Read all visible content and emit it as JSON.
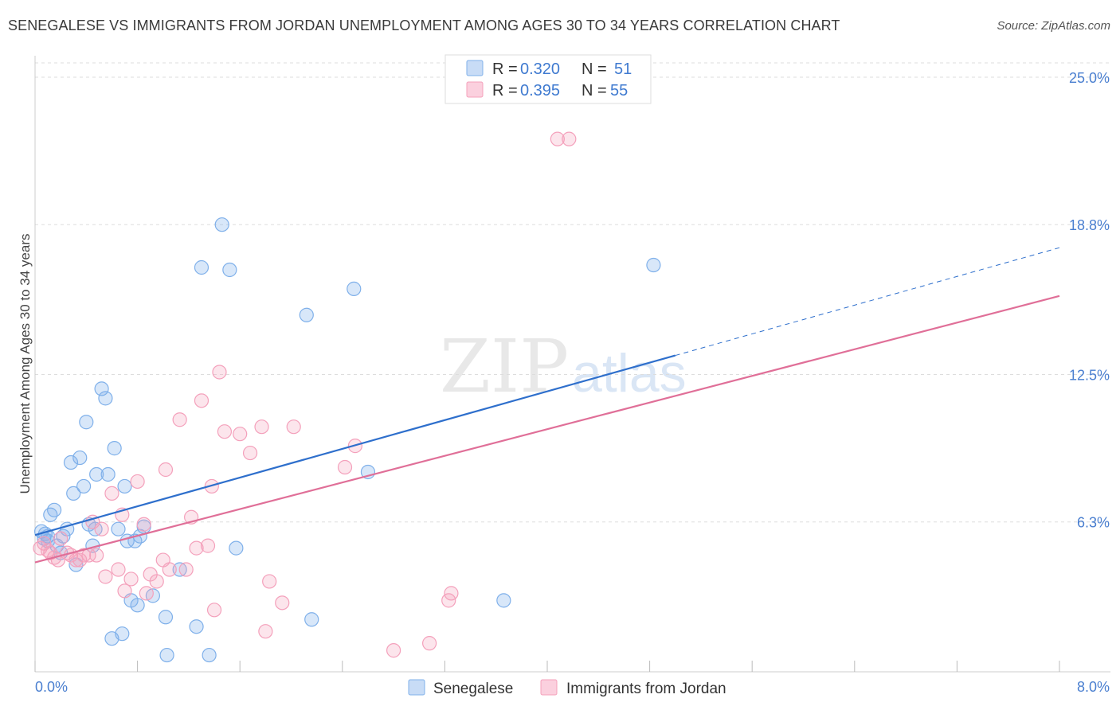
{
  "header": {
    "title": "SENEGALESE VS IMMIGRANTS FROM JORDAN UNEMPLOYMENT AMONG AGES 30 TO 34 YEARS CORRELATION CHART",
    "source": "Source: ZipAtlas.com"
  },
  "watermark": {
    "zip": "ZIP",
    "atlas": "atlas"
  },
  "legend": {
    "r_label": "R =",
    "n_label": "N =",
    "entries": [
      {
        "name": "Senegalese",
        "r": "0.320",
        "n": "51",
        "color": "#7fb0ea"
      },
      {
        "name": "Immigrants from Jordan",
        "r": "0.395",
        "n": "55",
        "color": "#f4a0bb"
      }
    ]
  },
  "chart_data": {
    "type": "scatter",
    "title": "SENEGALESE VS IMMIGRANTS FROM JORDAN UNEMPLOYMENT AMONG AGES 30 TO 34 YEARS CORRELATION CHART",
    "xlabel": "",
    "ylabel": "Unemployment Among Ages 30 to 34 years",
    "xlim": [
      0,
      8
    ],
    "ylim": [
      0,
      25.5
    ],
    "x_tick_labels": [
      "0.0%",
      "8.0%"
    ],
    "y_ticks": [
      6.3,
      12.5,
      18.8,
      25.0
    ],
    "y_tick_labels": [
      "6.3%",
      "12.5%",
      "18.8%",
      "25.0%"
    ],
    "grid": true,
    "series": [
      {
        "name": "Senegalese",
        "color": "#7fb0ea",
        "line_color": "#2e6fcc",
        "trend": {
          "x0": 0,
          "y0": 5.75,
          "x1": 5.0,
          "y1": 13.3,
          "dash_to_x": 8.0
        },
        "points": [
          [
            0.05,
            5.9
          ],
          [
            0.08,
            5.8
          ],
          [
            0.1,
            5.7
          ],
          [
            0.1,
            5.5
          ],
          [
            0.12,
            6.6
          ],
          [
            0.15,
            6.8
          ],
          [
            0.17,
            5.3
          ],
          [
            0.2,
            5.0
          ],
          [
            0.22,
            5.7
          ],
          [
            0.25,
            6.0
          ],
          [
            0.28,
            8.8
          ],
          [
            0.3,
            7.5
          ],
          [
            0.32,
            4.5
          ],
          [
            0.35,
            9.0
          ],
          [
            0.38,
            7.8
          ],
          [
            0.4,
            10.5
          ],
          [
            0.42,
            6.2
          ],
          [
            0.45,
            5.3
          ],
          [
            0.47,
            6.0
          ],
          [
            0.48,
            8.3
          ],
          [
            0.52,
            11.9
          ],
          [
            0.55,
            11.5
          ],
          [
            0.57,
            8.3
          ],
          [
            0.6,
            1.4
          ],
          [
            0.62,
            9.4
          ],
          [
            0.65,
            6.0
          ],
          [
            0.68,
            1.6
          ],
          [
            0.7,
            7.8
          ],
          [
            0.72,
            5.5
          ],
          [
            0.75,
            3.0
          ],
          [
            0.78,
            5.5
          ],
          [
            0.8,
            2.8
          ],
          [
            0.82,
            5.7
          ],
          [
            0.85,
            6.1
          ],
          [
            0.92,
            3.2
          ],
          [
            1.02,
            2.3
          ],
          [
            1.03,
            0.7
          ],
          [
            1.13,
            4.3
          ],
          [
            1.26,
            1.9
          ],
          [
            1.3,
            17.0
          ],
          [
            1.36,
            0.7
          ],
          [
            1.46,
            18.8
          ],
          [
            1.52,
            16.9
          ],
          [
            1.57,
            5.2
          ],
          [
            2.12,
            15.0
          ],
          [
            2.16,
            2.2
          ],
          [
            2.49,
            16.1
          ],
          [
            2.6,
            8.4
          ],
          [
            3.66,
            3.0
          ],
          [
            4.83,
            17.1
          ],
          [
            0.07,
            5.6
          ]
        ]
      },
      {
        "name": "Immigrants from Jordan",
        "color": "#f4a0bb",
        "line_color": "#e06f98",
        "trend": {
          "x0": 0,
          "y0": 4.6,
          "x1": 8.0,
          "y1": 15.8
        },
        "points": [
          [
            0.04,
            5.2
          ],
          [
            0.07,
            5.4
          ],
          [
            0.1,
            5.1
          ],
          [
            0.12,
            5.0
          ],
          [
            0.15,
            4.8
          ],
          [
            0.18,
            4.7
          ],
          [
            0.2,
            5.6
          ],
          [
            0.25,
            5.0
          ],
          [
            0.28,
            4.9
          ],
          [
            0.32,
            4.7
          ],
          [
            0.35,
            4.7
          ],
          [
            0.38,
            4.9
          ],
          [
            0.42,
            4.9
          ],
          [
            0.45,
            6.3
          ],
          [
            0.48,
            4.9
          ],
          [
            0.52,
            6.0
          ],
          [
            0.55,
            4.0
          ],
          [
            0.6,
            7.5
          ],
          [
            0.65,
            4.3
          ],
          [
            0.68,
            6.6
          ],
          [
            0.7,
            3.4
          ],
          [
            0.75,
            3.9
          ],
          [
            0.8,
            8.0
          ],
          [
            0.85,
            6.2
          ],
          [
            0.87,
            3.3
          ],
          [
            0.9,
            4.1
          ],
          [
            0.95,
            3.8
          ],
          [
            1.0,
            4.7
          ],
          [
            1.02,
            8.5
          ],
          [
            1.05,
            4.3
          ],
          [
            1.13,
            10.6
          ],
          [
            1.18,
            4.3
          ],
          [
            1.22,
            6.5
          ],
          [
            1.26,
            5.2
          ],
          [
            1.3,
            11.4
          ],
          [
            1.35,
            5.3
          ],
          [
            1.38,
            7.8
          ],
          [
            1.4,
            2.6
          ],
          [
            1.44,
            12.6
          ],
          [
            1.48,
            10.1
          ],
          [
            1.6,
            10.0
          ],
          [
            1.68,
            9.2
          ],
          [
            1.77,
            10.3
          ],
          [
            1.8,
            1.7
          ],
          [
            1.83,
            3.8
          ],
          [
            1.93,
            2.9
          ],
          [
            2.02,
            10.3
          ],
          [
            2.42,
            8.6
          ],
          [
            2.5,
            9.5
          ],
          [
            2.8,
            0.9
          ],
          [
            3.08,
            1.2
          ],
          [
            3.23,
            3.0
          ],
          [
            3.25,
            3.3
          ],
          [
            4.08,
            22.4
          ],
          [
            4.17,
            22.4
          ]
        ]
      }
    ]
  }
}
